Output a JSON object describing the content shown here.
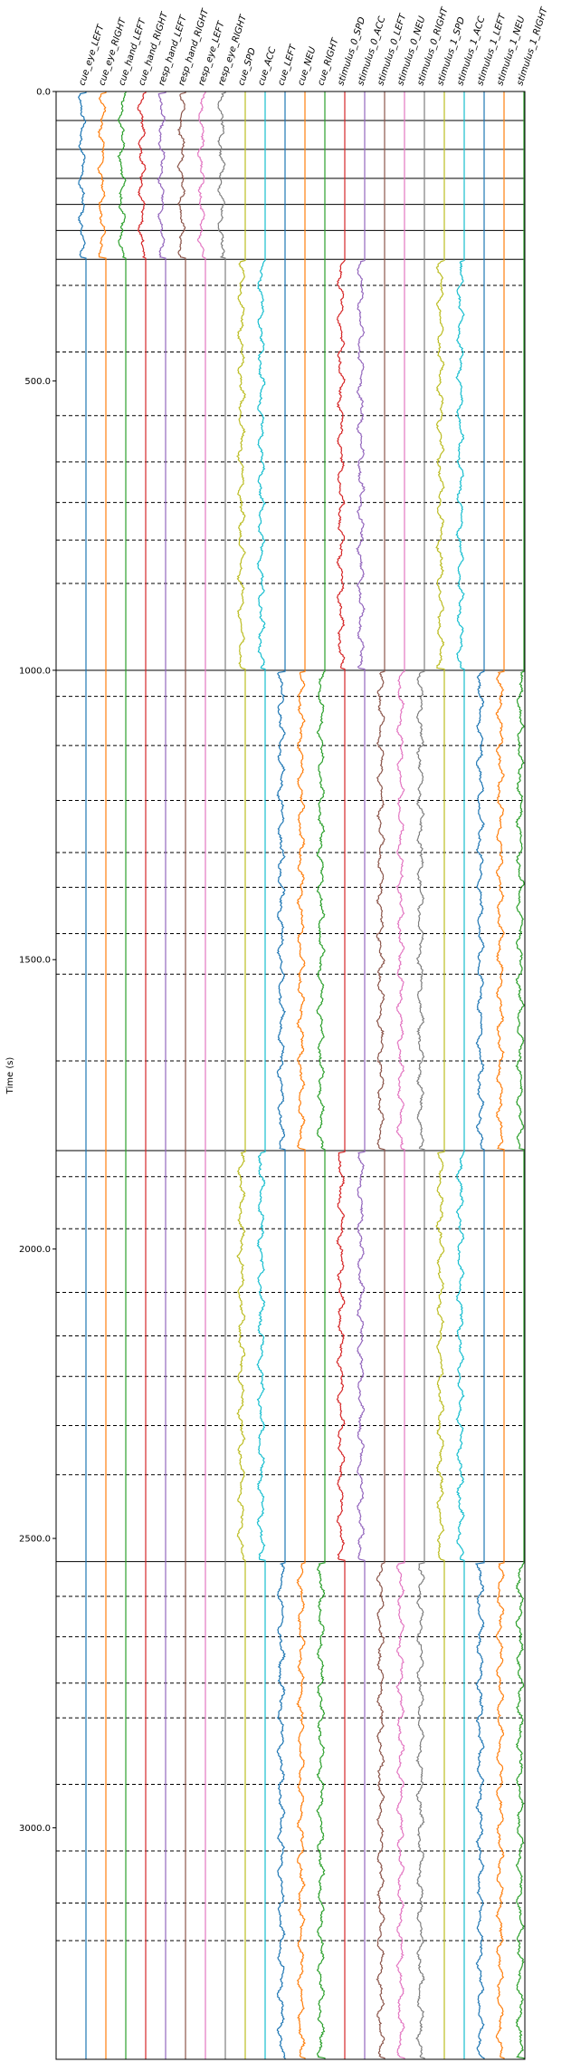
{
  "chart_data": {
    "type": "line",
    "ylabel": "Time (s)",
    "ylim": [
      0,
      3400
    ],
    "y_inverted": true,
    "y_ticks": [
      0,
      500,
      1000,
      1500,
      2000,
      2500,
      3000
    ],
    "y_tick_labels": [
      "0.0",
      "500.0",
      "1000.0",
      "1500.0",
      "2000.0",
      "2500.0",
      "3000.0"
    ],
    "grid": false,
    "series": [
      {
        "name": "cue_eye_LEFT",
        "color": "#1f77b4"
      },
      {
        "name": "cue_eye_RIGHT",
        "color": "#ff7f0e"
      },
      {
        "name": "cue_hand_LEFT",
        "color": "#2ca02c"
      },
      {
        "name": "cue_hand_RIGHT",
        "color": "#d62728"
      },
      {
        "name": "resp_hand_LEFT",
        "color": "#9467bd"
      },
      {
        "name": "resp_hand_RIGHT",
        "color": "#8c564b"
      },
      {
        "name": "resp_eye_LEFT",
        "color": "#e377c2"
      },
      {
        "name": "resp_eye_RIGHT",
        "color": "#7f7f7f"
      },
      {
        "name": "cue_SPD",
        "color": "#bcbd22"
      },
      {
        "name": "cue_ACC",
        "color": "#17becf"
      },
      {
        "name": "cue_LEFT",
        "color": "#1f77b4"
      },
      {
        "name": "cue_NEU",
        "color": "#ff7f0e"
      },
      {
        "name": "cue_RIGHT",
        "color": "#2ca02c"
      },
      {
        "name": "stimulus_0_SPD",
        "color": "#d62728"
      },
      {
        "name": "stimulus_0_ACC",
        "color": "#9467bd"
      },
      {
        "name": "stimulus_0_LEFT",
        "color": "#8c564b"
      },
      {
        "name": "stimulus_0_NEU",
        "color": "#e377c2"
      },
      {
        "name": "stimulus_0_RIGHT",
        "color": "#7f7f7f"
      },
      {
        "name": "stimulus_1_SPD",
        "color": "#bcbd22"
      },
      {
        "name": "stimulus_1_ACC",
        "color": "#17becf"
      },
      {
        "name": "stimulus_1_LEFT",
        "color": "#1f77b4"
      },
      {
        "name": "stimulus_1_NEU",
        "color": "#ff7f0e"
      },
      {
        "name": "stimulus_1_RIGHT",
        "color": "#2ca02c"
      }
    ],
    "run_boundaries": [
      0,
      50,
      100,
      150,
      195,
      240,
      290,
      1000,
      1830,
      2540,
      3400
    ],
    "block_dividers": [
      335,
      450,
      560,
      640,
      710,
      775,
      850,
      1045,
      1130,
      1225,
      1315,
      1375,
      1455,
      1525,
      1675,
      1875,
      1965,
      2075,
      2150,
      2220,
      2305,
      2390,
      2600,
      2670,
      2750,
      2810,
      2925,
      3040,
      3130,
      3195
    ],
    "active_periods": [
      {
        "range": [
          0,
          290
        ],
        "series": [
          "cue_eye_LEFT",
          "cue_eye_RIGHT",
          "cue_hand_LEFT",
          "cue_hand_RIGHT",
          "resp_hand_LEFT",
          "resp_hand_RIGHT",
          "resp_eye_LEFT",
          "resp_eye_RIGHT"
        ]
      },
      {
        "range": [
          290,
          1000
        ],
        "series": [
          "cue_SPD",
          "cue_ACC",
          "stimulus_0_SPD",
          "stimulus_0_ACC",
          "stimulus_1_SPD",
          "stimulus_1_ACC"
        ]
      },
      {
        "range": [
          1000,
          1830
        ],
        "series": [
          "cue_LEFT",
          "cue_NEU",
          "cue_RIGHT",
          "stimulus_0_LEFT",
          "stimulus_0_NEU",
          "stimulus_0_RIGHT",
          "stimulus_1_LEFT",
          "stimulus_1_NEU",
          "stimulus_1_RIGHT"
        ]
      },
      {
        "range": [
          1830,
          2540
        ],
        "series": [
          "cue_SPD",
          "cue_ACC",
          "stimulus_0_SPD",
          "stimulus_0_ACC",
          "stimulus_1_SPD",
          "stimulus_1_ACC"
        ]
      },
      {
        "range": [
          2540,
          3400
        ],
        "series": [
          "cue_LEFT",
          "cue_NEU",
          "cue_RIGHT",
          "stimulus_0_LEFT",
          "stimulus_0_NEU",
          "stimulus_0_RIGHT",
          "stimulus_1_LEFT",
          "stimulus_1_NEU",
          "stimulus_1_RIGHT"
        ]
      }
    ]
  }
}
